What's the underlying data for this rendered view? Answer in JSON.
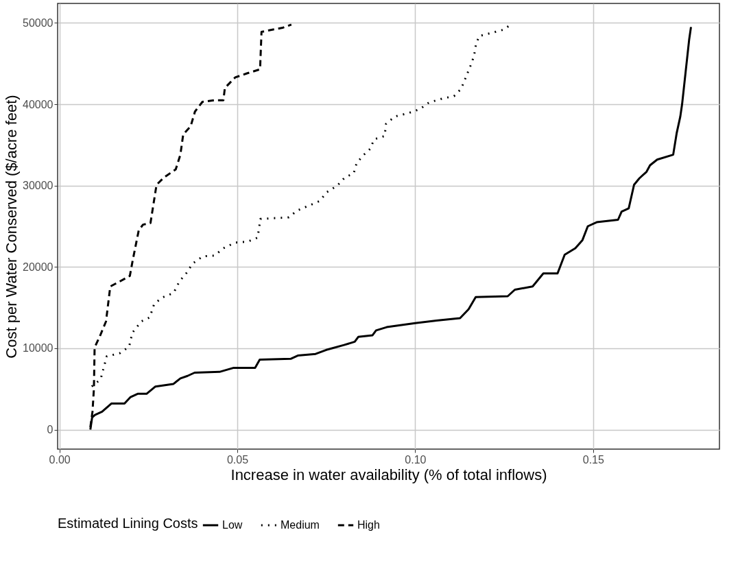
{
  "chart_data": {
    "type": "line",
    "xlabel": "Increase in water availability (% of total inflows)",
    "ylabel": "Cost per Water Conserved ($/acre feet)",
    "legend_title": "Estimated Lining Costs",
    "xlim": [
      -0.0005,
      0.1855
    ],
    "ylim": [
      -2400,
      52400
    ],
    "xticks": [
      {
        "value": 0,
        "label": "0.00"
      },
      0.05,
      {
        "value": 0.1,
        "label": "0.10"
      },
      0.15
    ],
    "yticks": [
      0,
      10000,
      20000,
      30000,
      40000,
      50000
    ],
    "grid": true,
    "legend": "bottom",
    "series": [
      {
        "name": "Low",
        "color": "#000000",
        "line_style": "solid",
        "x": [
          0.0087,
          0.0092,
          0.01,
          0.012,
          0.0146,
          0.0183,
          0.02,
          0.022,
          0.0245,
          0.027,
          0.032,
          0.034,
          0.036,
          0.038,
          0.045,
          0.049,
          0.055,
          0.0563,
          0.065,
          0.067,
          0.072,
          0.075,
          0.08,
          0.083,
          0.084,
          0.088,
          0.089,
          0.092,
          0.1,
          0.106,
          0.1126,
          0.115,
          0.117,
          0.126,
          0.128,
          0.133,
          0.136,
          0.14,
          0.142,
          0.145,
          0.147,
          0.1485,
          0.151,
          0.157,
          0.158,
          0.16,
          0.1615,
          0.163,
          0.165,
          0.166,
          0.168,
          0.1725,
          0.1735,
          0.1745,
          0.175,
          0.1755,
          0.176,
          0.1765,
          0.177,
          0.1775
        ],
        "values": [
          0,
          1500,
          1800,
          2200,
          3200,
          3200,
          4000,
          4400,
          4400,
          5300,
          5600,
          6300,
          6600,
          7000,
          7100,
          7600,
          7600,
          8600,
          8700,
          9100,
          9300,
          9800,
          10400,
          10800,
          11400,
          11600,
          12200,
          12600,
          13100,
          13400,
          13700,
          14800,
          16300,
          16400,
          17200,
          17600,
          19200,
          19200,
          21500,
          22300,
          23300,
          25000,
          25500,
          25800,
          26800,
          27200,
          30100,
          30900,
          31700,
          32500,
          33200,
          33800,
          36500,
          38500,
          40000,
          42000,
          44000,
          46000,
          48000,
          49500
        ]
      },
      {
        "name": "Medium",
        "color": "#000000",
        "line_style": "dotted",
        "x": [
          0.0091,
          0.0116,
          0.0133,
          0.017,
          0.0196,
          0.0205,
          0.023,
          0.0254,
          0.0266,
          0.0287,
          0.0321,
          0.0337,
          0.0358,
          0.0374,
          0.0403,
          0.0436,
          0.0461,
          0.0494,
          0.0528,
          0.0557,
          0.0565,
          0.0645,
          0.0667,
          0.0731,
          0.0752,
          0.0781,
          0.0802,
          0.0827,
          0.0835,
          0.0851,
          0.0873,
          0.0885,
          0.0914,
          0.0918,
          0.0943,
          0.098,
          0.1013,
          0.1038,
          0.1076,
          0.1109,
          0.1129,
          0.1142,
          0.1155,
          0.1165,
          0.1171,
          0.118,
          0.1217,
          0.125,
          0.1271
        ],
        "values": [
          5300,
          6200,
          9000,
          9400,
          10200,
          11900,
          13300,
          13800,
          15400,
          16200,
          16800,
          18200,
          19300,
          20400,
          21300,
          21400,
          22300,
          23000,
          23100,
          23600,
          25900,
          26100,
          26900,
          28100,
          29200,
          30000,
          31000,
          31500,
          32700,
          33600,
          34500,
          35700,
          36100,
          37600,
          38500,
          38900,
          39400,
          40200,
          40700,
          41000,
          41900,
          43300,
          44700,
          45900,
          47400,
          48400,
          48800,
          49200,
          49900
        ]
      },
      {
        "name": "High",
        "color": "#000000",
        "line_style": "dashed",
        "x": [
          0.0087,
          0.0093,
          0.0097,
          0.0099,
          0.0114,
          0.0131,
          0.0143,
          0.0169,
          0.0198,
          0.0206,
          0.0223,
          0.0235,
          0.0256,
          0.0273,
          0.0294,
          0.0327,
          0.034,
          0.0348,
          0.0369,
          0.0381,
          0.0402,
          0.0435,
          0.0461,
          0.0465,
          0.0494,
          0.0527,
          0.0564,
          0.0568,
          0.0601,
          0.0627,
          0.0652
        ],
        "values": [
          300,
          2200,
          5000,
          10100,
          11500,
          13300,
          17600,
          18200,
          18900,
          20800,
          24500,
          25200,
          25400,
          30100,
          31000,
          32000,
          33800,
          36300,
          37300,
          39100,
          40300,
          40500,
          40500,
          42000,
          43300,
          43800,
          44300,
          48900,
          49200,
          49400,
          49800
        ]
      }
    ]
  }
}
